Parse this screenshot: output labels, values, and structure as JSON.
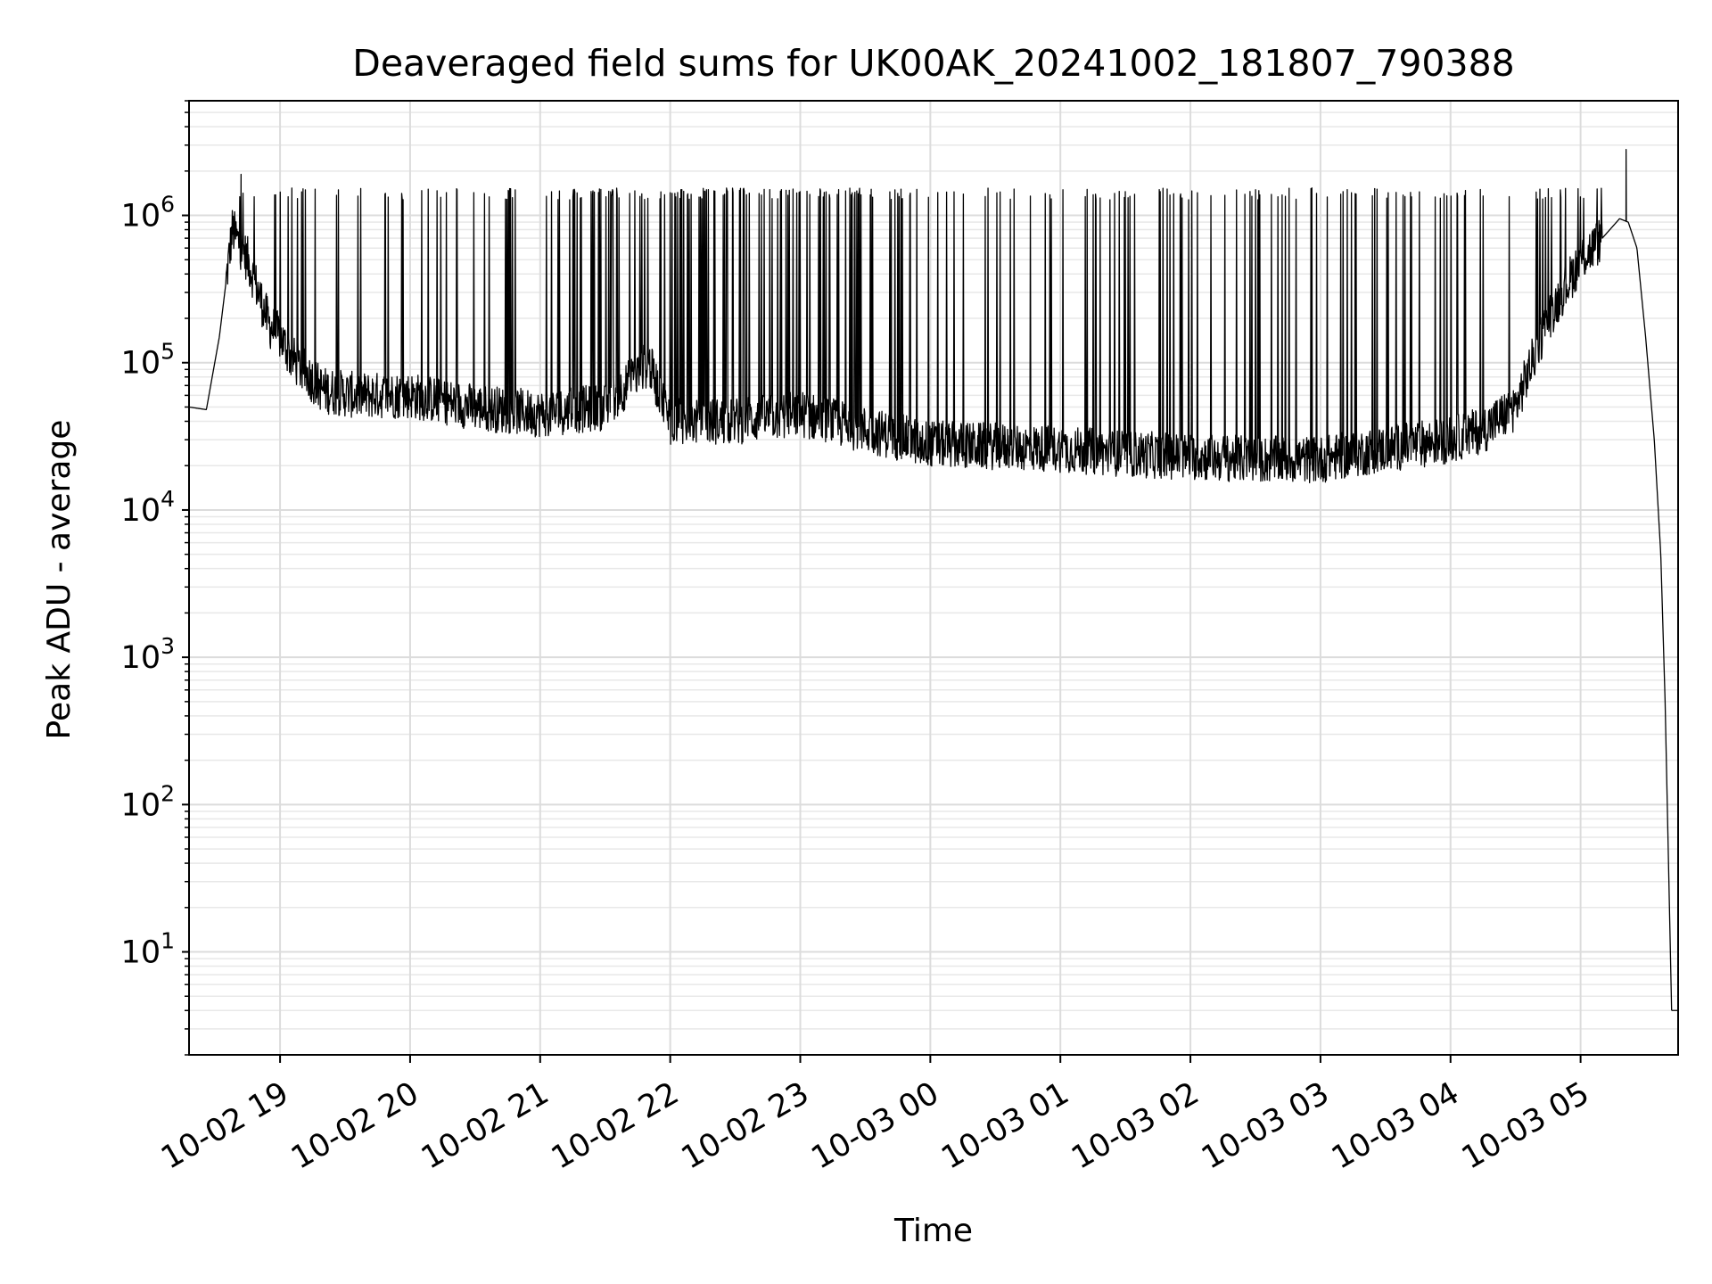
{
  "chart_data": {
    "type": "line",
    "title": "Deaveraged field sums for UK00AK_20241002_181807_790388",
    "xlabel": "Time",
    "ylabel": "Peak ADU - average",
    "x_ticks": [
      "10-02 19",
      "10-02 20",
      "10-02 21",
      "10-02 22",
      "10-02 23",
      "10-03 00",
      "10-03 01",
      "10-03 02",
      "10-03 03",
      "10-03 04",
      "10-03 05"
    ],
    "y_ticks": [
      {
        "base": "10",
        "exp": "1"
      },
      {
        "base": "10",
        "exp": "2"
      },
      {
        "base": "10",
        "exp": "3"
      },
      {
        "base": "10",
        "exp": "4"
      },
      {
        "base": "10",
        "exp": "5"
      },
      {
        "base": "10",
        "exp": "6"
      }
    ],
    "y_scale": "log",
    "ylim": [
      2,
      6000000
    ],
    "xlim": [
      "2024-10-02 18:18",
      "2024-10-03 05:45"
    ],
    "grid": true,
    "line_color": "#000000",
    "series": [
      {
        "x": [
          "2024-10-02 18:18",
          "2024-10-02 18:26",
          "2024-10-02 18:32",
          "2024-10-02 18:38",
          "2024-10-02 18:45",
          "2024-10-02 18:50",
          "2024-10-02 18:55",
          "2024-10-02 19:00",
          "2024-10-02 19:05",
          "2024-10-02 19:10",
          "2024-10-02 19:20",
          "2024-10-02 19:35",
          "2024-10-02 20:00",
          "2024-10-02 20:30",
          "2024-10-02 21:00",
          "2024-10-02 21:30",
          "2024-10-02 21:50",
          "2024-10-02 22:00",
          "2024-10-02 22:30",
          "2024-10-02 23:00",
          "2024-10-02 23:30",
          "2024-10-03 00:00",
          "2024-10-03 00:30",
          "2024-10-03 01:00",
          "2024-10-03 01:30",
          "2024-10-03 02:00",
          "2024-10-03 02:30",
          "2024-10-03 03:00",
          "2024-10-03 03:30",
          "2024-10-03 04:00",
          "2024-10-03 04:15",
          "2024-10-03 04:30",
          "2024-10-03 04:45",
          "2024-10-03 05:00",
          "2024-10-03 05:10",
          "2024-10-03 05:18",
          "2024-10-03 05:22",
          "2024-10-03 05:26",
          "2024-10-03 05:30",
          "2024-10-03 05:34",
          "2024-10-03 05:37",
          "2024-10-03 05:39",
          "2024-10-03 05:40",
          "2024-10-03 05:42",
          "2024-10-03 05:45"
        ],
        "y": [
          50000,
          48000,
          150000,
          800000,
          500000,
          300000,
          180000,
          150000,
          110000,
          90000,
          65000,
          60000,
          60000,
          50000,
          45000,
          50000,
          100000,
          40000,
          40000,
          45000,
          35000,
          28000,
          27000,
          26000,
          24000,
          23000,
          22000,
          22000,
          26000,
          30000,
          35000,
          50000,
          200000,
          500000,
          700000,
          950000,
          900000,
          600000,
          150000,
          30000,
          5000,
          500,
          100,
          4,
          4
        ]
      }
    ],
    "spike_ceiling": 1400000,
    "spike_peaks": [
      {
        "x": "2024-10-02 18:42",
        "y": 1900000
      },
      {
        "x": "2024-10-03 05:21",
        "y": 2800000
      }
    ]
  }
}
